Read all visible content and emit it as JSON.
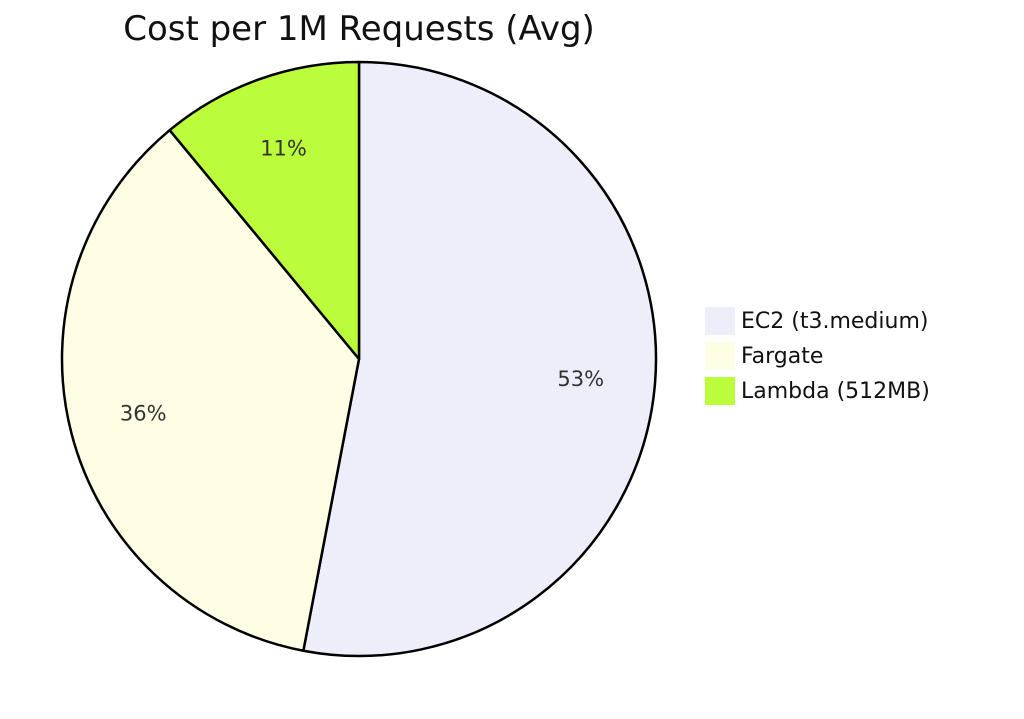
{
  "chart_data": {
    "type": "pie",
    "title": "Cost per 1M Requests (Avg)",
    "categories": [
      "EC2 (t3.medium)",
      "Fargate",
      "Lambda (512MB)"
    ],
    "values": [
      53,
      36,
      11
    ],
    "labels": [
      "53%",
      "36%",
      "11%"
    ],
    "colors": [
      "#eeeefb",
      "#fefee4",
      "#bbfd3a"
    ],
    "stroke_color": "#000000",
    "legend_position": "right",
    "start_angle": "12 o'clock, clockwise"
  }
}
